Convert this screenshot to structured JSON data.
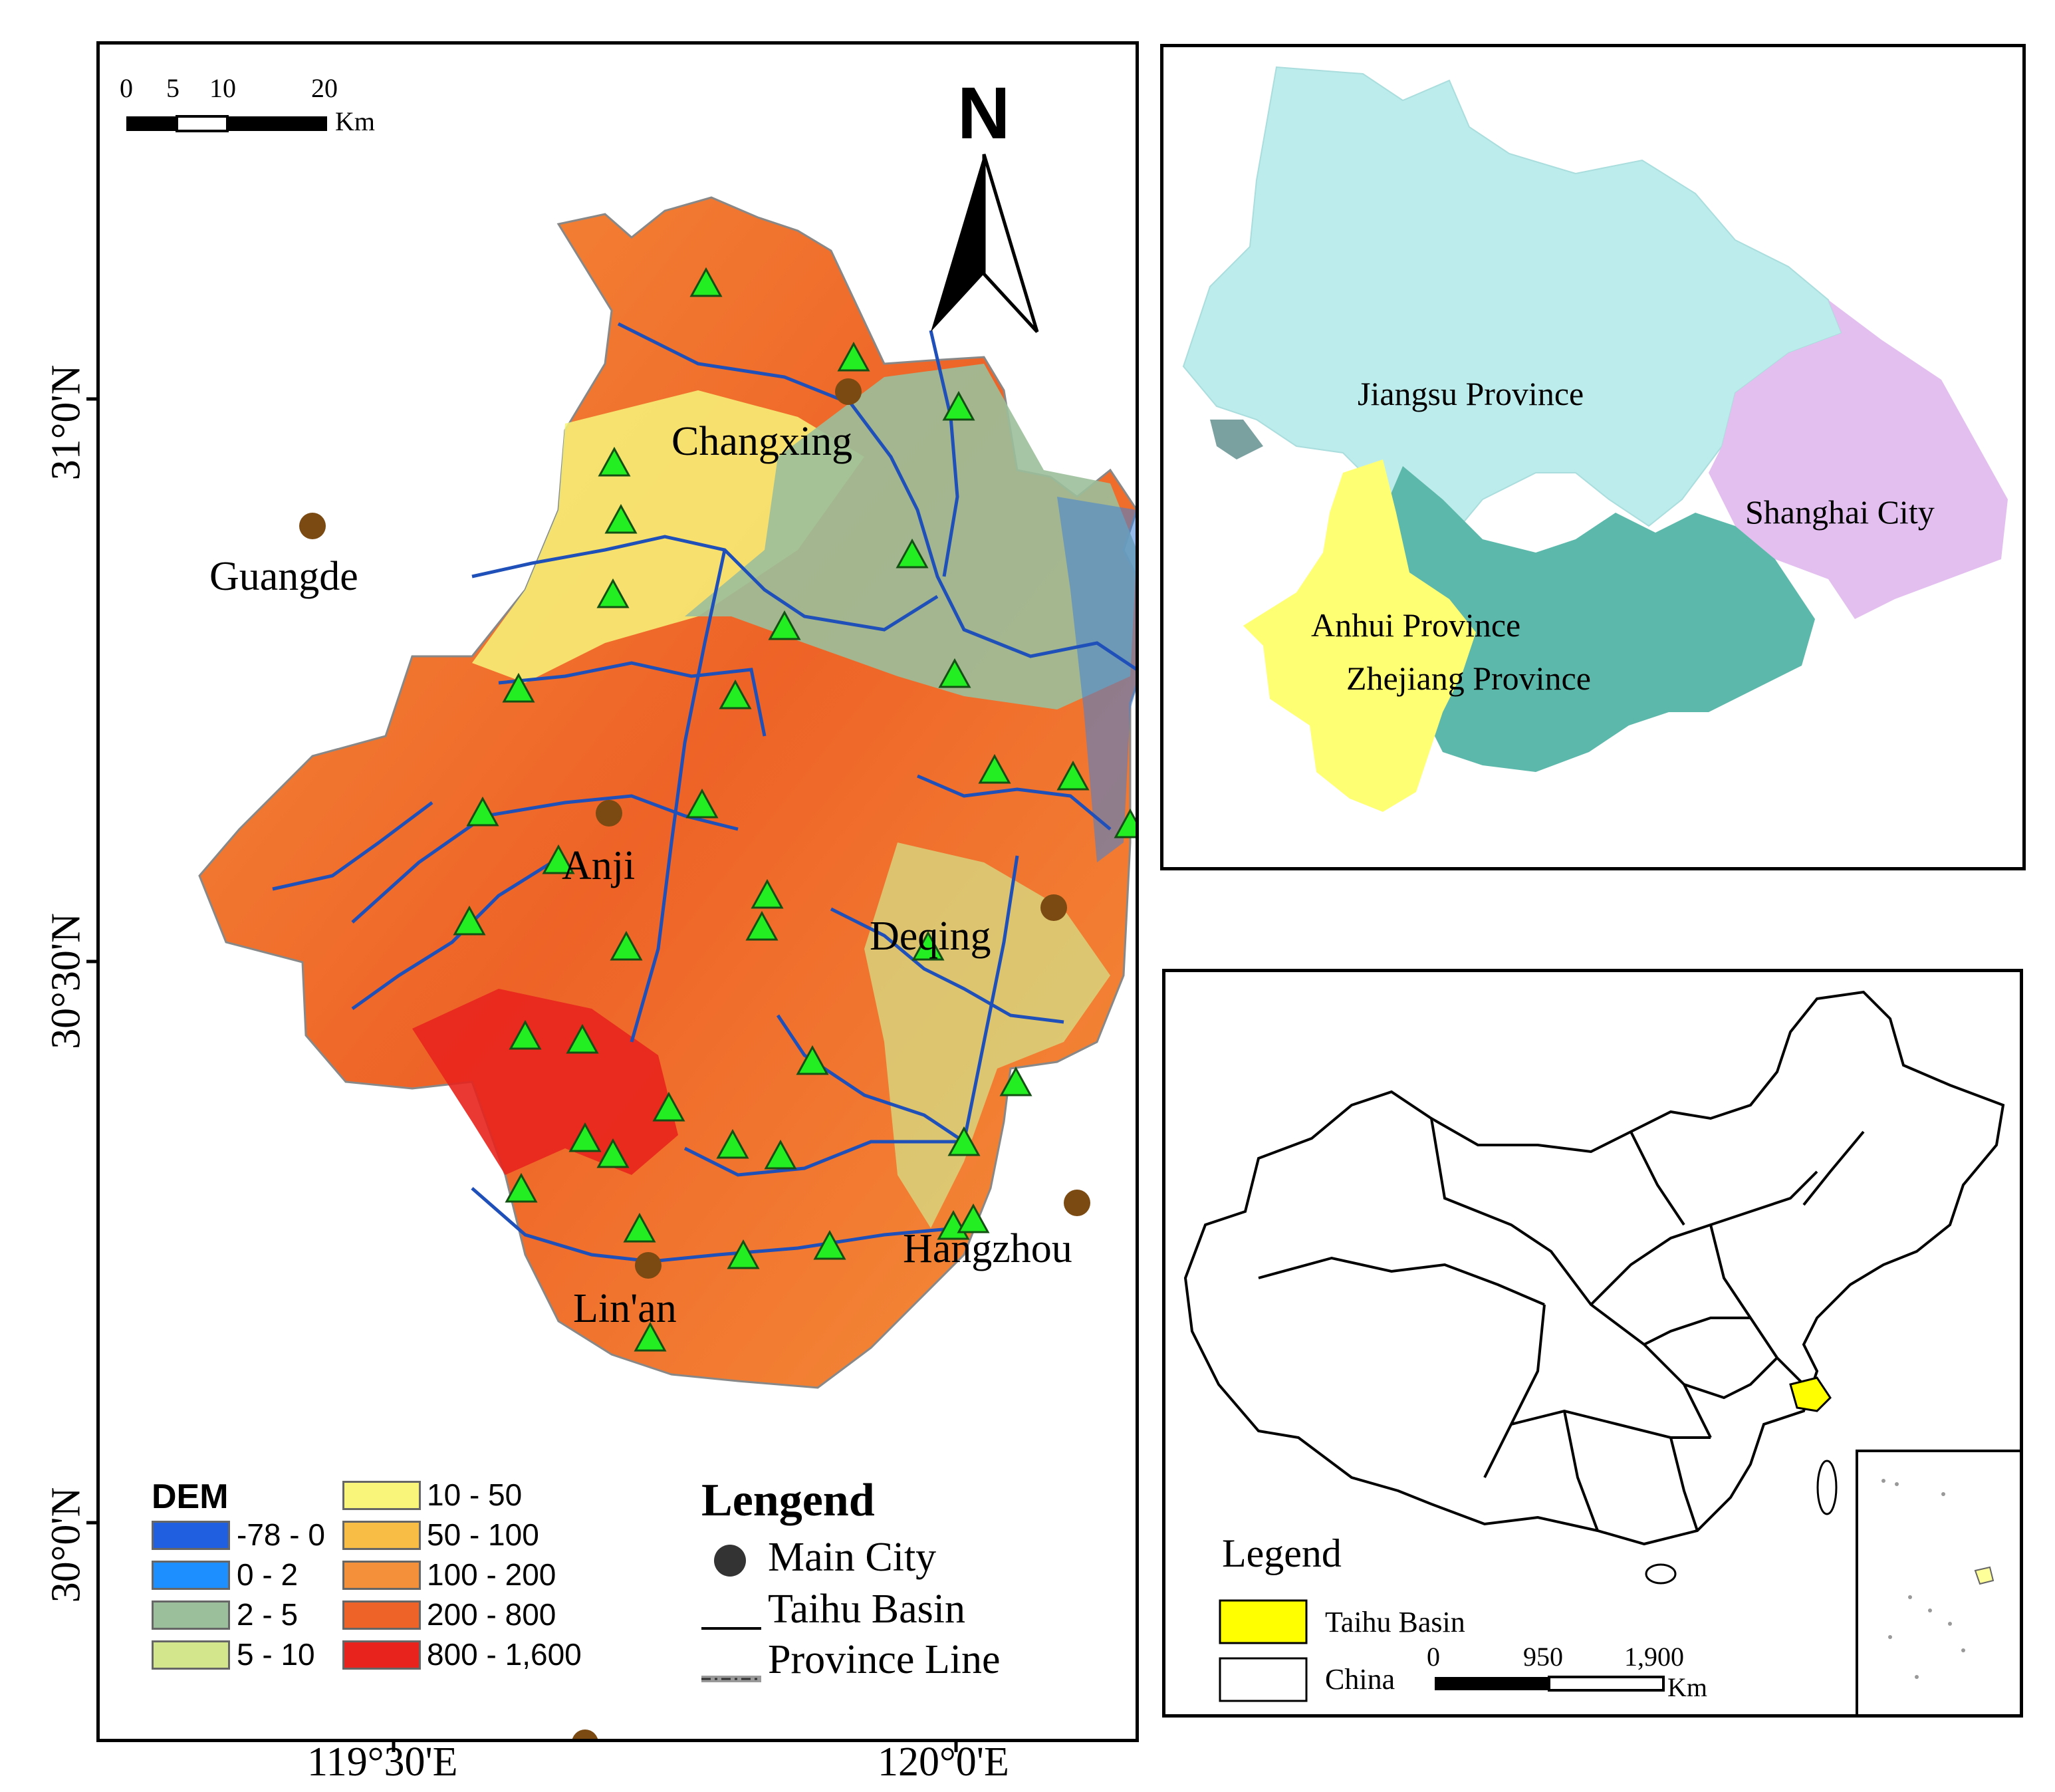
{
  "main_map": {
    "scale_bar": {
      "ticks": [
        "0",
        "5",
        "10",
        "20"
      ],
      "unit": "Km"
    },
    "north_label": "N",
    "lat_labels": [
      "31°0'N",
      "30°30'N",
      "30°0'N"
    ],
    "lon_labels": [
      "119°30'E",
      "120°0'E"
    ],
    "cities": [
      {
        "name": "Changxing"
      },
      {
        "name": "Guangde"
      },
      {
        "name": "Anji"
      },
      {
        "name": "Deqing"
      },
      {
        "name": "Hangzhou"
      },
      {
        "name": "Lin'an"
      }
    ],
    "dem_legend": {
      "title": "DEM",
      "classes": [
        {
          "label": "-78 - 0",
          "color": "#1f5fe0"
        },
        {
          "label": "0 - 2",
          "color": "#1e8fff"
        },
        {
          "label": "2 - 5",
          "color": "#9bbf9a"
        },
        {
          "label": "5 - 10",
          "color": "#d4e68c"
        },
        {
          "label": "10 - 50",
          "color": "#f8f57a"
        },
        {
          "label": "50 - 100",
          "color": "#f7bd45"
        },
        {
          "label": "100 - 200",
          "color": "#f5903a"
        },
        {
          "label": "200 - 800",
          "color": "#ee6327"
        },
        {
          "label": "800 - 1,600",
          "color": "#e8231d"
        }
      ]
    },
    "legend": {
      "title": "Lengend",
      "items": [
        "Main City",
        "Taihu Basin",
        "Province Line"
      ]
    },
    "colors": {
      "river": "#1f4fb8",
      "station": "#22ee22",
      "city": "#7a4a12"
    }
  },
  "province_map": {
    "provinces": [
      {
        "name": "Jiangsu Province",
        "color": "#bcecec"
      },
      {
        "name": "Shanghai City",
        "color": "#e3bff0"
      },
      {
        "name": "Anhui Province",
        "color": "#ffff73"
      },
      {
        "name": "Zhejiang Province",
        "color": "#5cb8aa"
      }
    ]
  },
  "china_map": {
    "legend_title": "Legend",
    "legend_items": [
      {
        "label": "Taihu Basin",
        "color": "#ffff00"
      },
      {
        "label": "China",
        "color": "#ffffff"
      }
    ],
    "scale_bar": {
      "ticks": [
        "0",
        "950",
        "1,900"
      ],
      "unit": "Km"
    }
  }
}
